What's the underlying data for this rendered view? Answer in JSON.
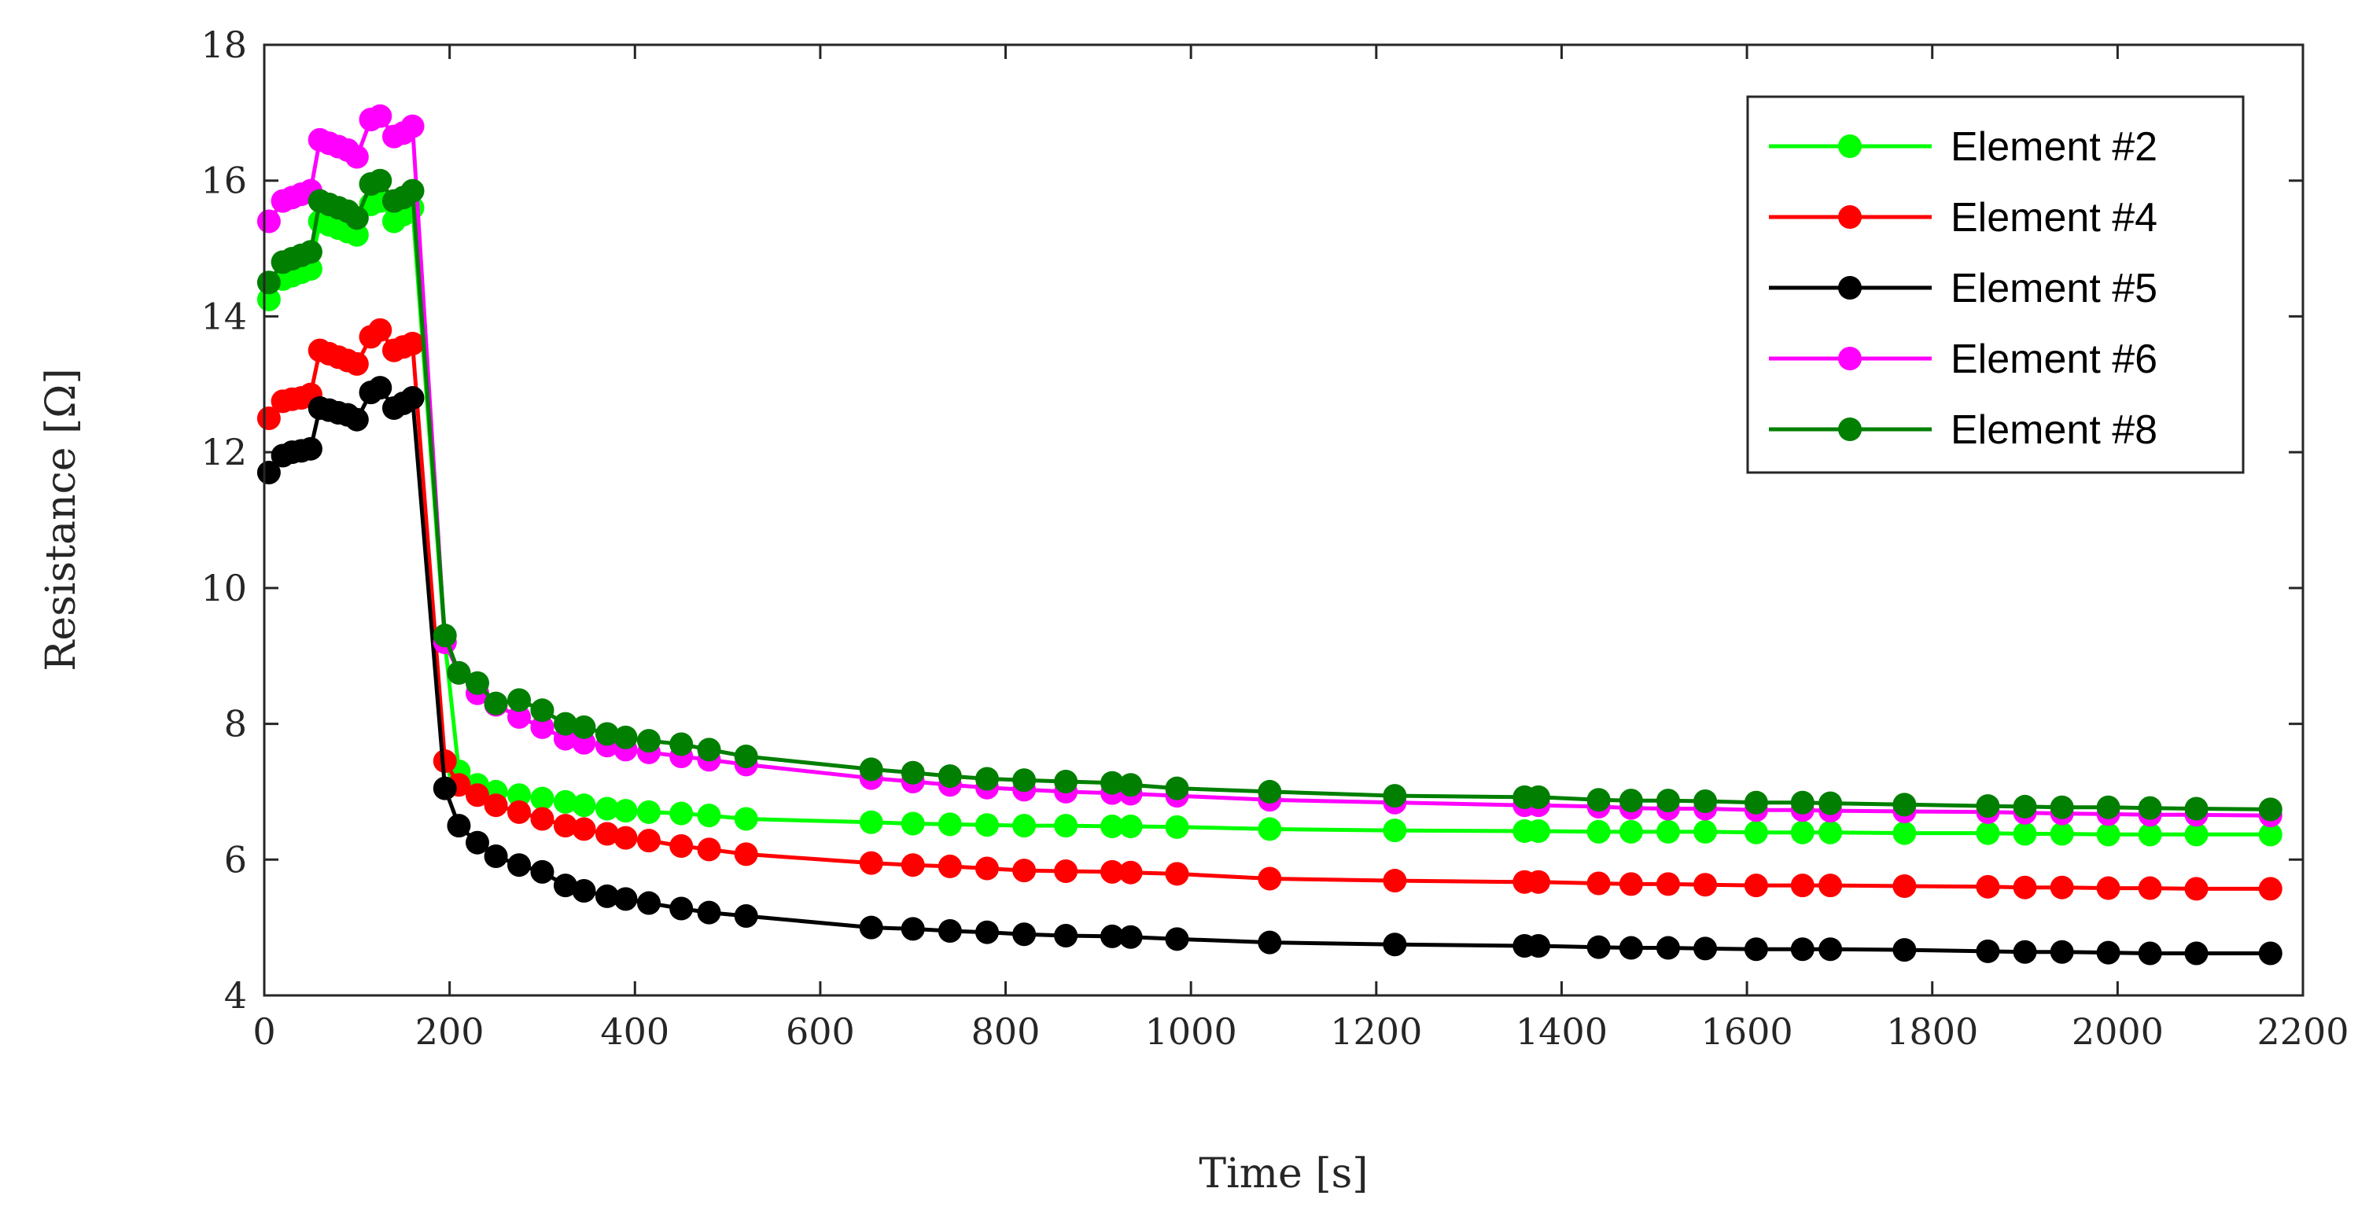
{
  "chart_data": {
    "type": "line",
    "xlabel": "Time [s]",
    "ylabel": "Resistance [Ω]",
    "xlim": [
      0,
      2200
    ],
    "ylim": [
      4,
      18
    ],
    "xticks": [
      0,
      200,
      400,
      600,
      800,
      1000,
      1200,
      1400,
      1600,
      1800,
      2000,
      2200
    ],
    "yticks": [
      4,
      6,
      8,
      10,
      12,
      14,
      16,
      18
    ],
    "xtick_labels": [
      "0",
      "200",
      "400",
      "600",
      "800",
      "1000",
      "1200",
      "1400",
      "1600",
      "1800",
      "2000",
      "2200"
    ],
    "ytick_labels": [
      "4",
      "6",
      "8",
      "10",
      "12",
      "14",
      "16",
      "18"
    ],
    "grid": false,
    "legend_position": "top-right",
    "x": [
      5,
      20,
      30,
      40,
      50,
      60,
      70,
      80,
      90,
      100,
      115,
      125,
      140,
      150,
      160,
      195,
      210,
      230,
      250,
      275,
      300,
      325,
      345,
      370,
      390,
      415,
      450,
      480,
      520,
      655,
      700,
      740,
      780,
      820,
      865,
      915,
      935,
      985,
      1085,
      1220,
      1360,
      1375,
      1440,
      1475,
      1515,
      1555,
      1610,
      1660,
      1690,
      1770,
      1860,
      1900,
      1940,
      1990,
      2035,
      2085,
      2165
    ],
    "series": [
      {
        "name": "Element #2",
        "color": "#00ff00",
        "values": [
          14.25,
          14.55,
          14.6,
          14.65,
          14.7,
          15.4,
          15.35,
          15.3,
          15.25,
          15.2,
          15.65,
          15.7,
          15.4,
          15.5,
          15.6,
          9.2,
          7.3,
          7.1,
          7.0,
          6.95,
          6.9,
          6.85,
          6.8,
          6.75,
          6.72,
          6.7,
          6.68,
          6.65,
          6.6,
          6.55,
          6.53,
          6.52,
          6.51,
          6.5,
          6.5,
          6.49,
          6.49,
          6.48,
          6.45,
          6.43,
          6.42,
          6.42,
          6.41,
          6.41,
          6.41,
          6.41,
          6.4,
          6.4,
          6.4,
          6.39,
          6.39,
          6.38,
          6.38,
          6.37,
          6.37,
          6.37,
          6.37
        ]
      },
      {
        "name": "Element #4",
        "color": "#ff0000",
        "values": [
          12.5,
          12.75,
          12.78,
          12.8,
          12.85,
          13.5,
          13.45,
          13.4,
          13.35,
          13.3,
          13.7,
          13.8,
          13.5,
          13.55,
          13.6,
          7.45,
          7.1,
          6.95,
          6.8,
          6.7,
          6.6,
          6.5,
          6.45,
          6.38,
          6.32,
          6.28,
          6.2,
          6.15,
          6.08,
          5.95,
          5.92,
          5.9,
          5.87,
          5.84,
          5.83,
          5.82,
          5.81,
          5.79,
          5.72,
          5.69,
          5.67,
          5.67,
          5.65,
          5.64,
          5.64,
          5.63,
          5.62,
          5.62,
          5.62,
          5.61,
          5.6,
          5.59,
          5.59,
          5.58,
          5.58,
          5.57,
          5.57
        ]
      },
      {
        "name": "Element #5",
        "color": "#000000",
        "values": [
          11.7,
          11.95,
          12.0,
          12.02,
          12.05,
          12.65,
          12.62,
          12.58,
          12.55,
          12.48,
          12.88,
          12.95,
          12.65,
          12.72,
          12.8,
          7.05,
          6.5,
          6.25,
          6.05,
          5.92,
          5.82,
          5.62,
          5.54,
          5.46,
          5.42,
          5.36,
          5.28,
          5.22,
          5.17,
          5.0,
          4.98,
          4.95,
          4.93,
          4.9,
          4.88,
          4.87,
          4.86,
          4.83,
          4.78,
          4.75,
          4.73,
          4.73,
          4.71,
          4.7,
          4.7,
          4.69,
          4.68,
          4.68,
          4.68,
          4.67,
          4.65,
          4.64,
          4.64,
          4.63,
          4.62,
          4.62,
          4.62
        ]
      },
      {
        "name": "Element #6",
        "color": "#ff00ff",
        "values": [
          15.4,
          15.7,
          15.75,
          15.8,
          15.85,
          16.6,
          16.55,
          16.5,
          16.45,
          16.35,
          16.9,
          16.95,
          16.65,
          16.7,
          16.8,
          9.2,
          8.75,
          8.45,
          8.28,
          8.1,
          7.95,
          7.78,
          7.72,
          7.68,
          7.62,
          7.58,
          7.52,
          7.47,
          7.4,
          7.2,
          7.15,
          7.1,
          7.06,
          7.03,
          7.0,
          6.98,
          6.97,
          6.94,
          6.88,
          6.84,
          6.8,
          6.8,
          6.78,
          6.76,
          6.75,
          6.75,
          6.73,
          6.73,
          6.72,
          6.71,
          6.7,
          6.69,
          6.68,
          6.67,
          6.66,
          6.66,
          6.65
        ]
      },
      {
        "name": "Element #8",
        "color": "#007f00",
        "values": [
          14.5,
          14.8,
          14.85,
          14.9,
          14.95,
          15.7,
          15.65,
          15.6,
          15.55,
          15.45,
          15.95,
          16.0,
          15.7,
          15.75,
          15.85,
          9.3,
          8.75,
          8.6,
          8.3,
          8.35,
          8.2,
          8.0,
          7.95,
          7.85,
          7.8,
          7.75,
          7.7,
          7.62,
          7.52,
          7.33,
          7.28,
          7.23,
          7.19,
          7.17,
          7.15,
          7.13,
          7.1,
          7.05,
          7.0,
          6.94,
          6.92,
          6.92,
          6.88,
          6.87,
          6.87,
          6.86,
          6.84,
          6.84,
          6.83,
          6.81,
          6.79,
          6.78,
          6.77,
          6.77,
          6.76,
          6.75,
          6.74
        ]
      }
    ]
  }
}
